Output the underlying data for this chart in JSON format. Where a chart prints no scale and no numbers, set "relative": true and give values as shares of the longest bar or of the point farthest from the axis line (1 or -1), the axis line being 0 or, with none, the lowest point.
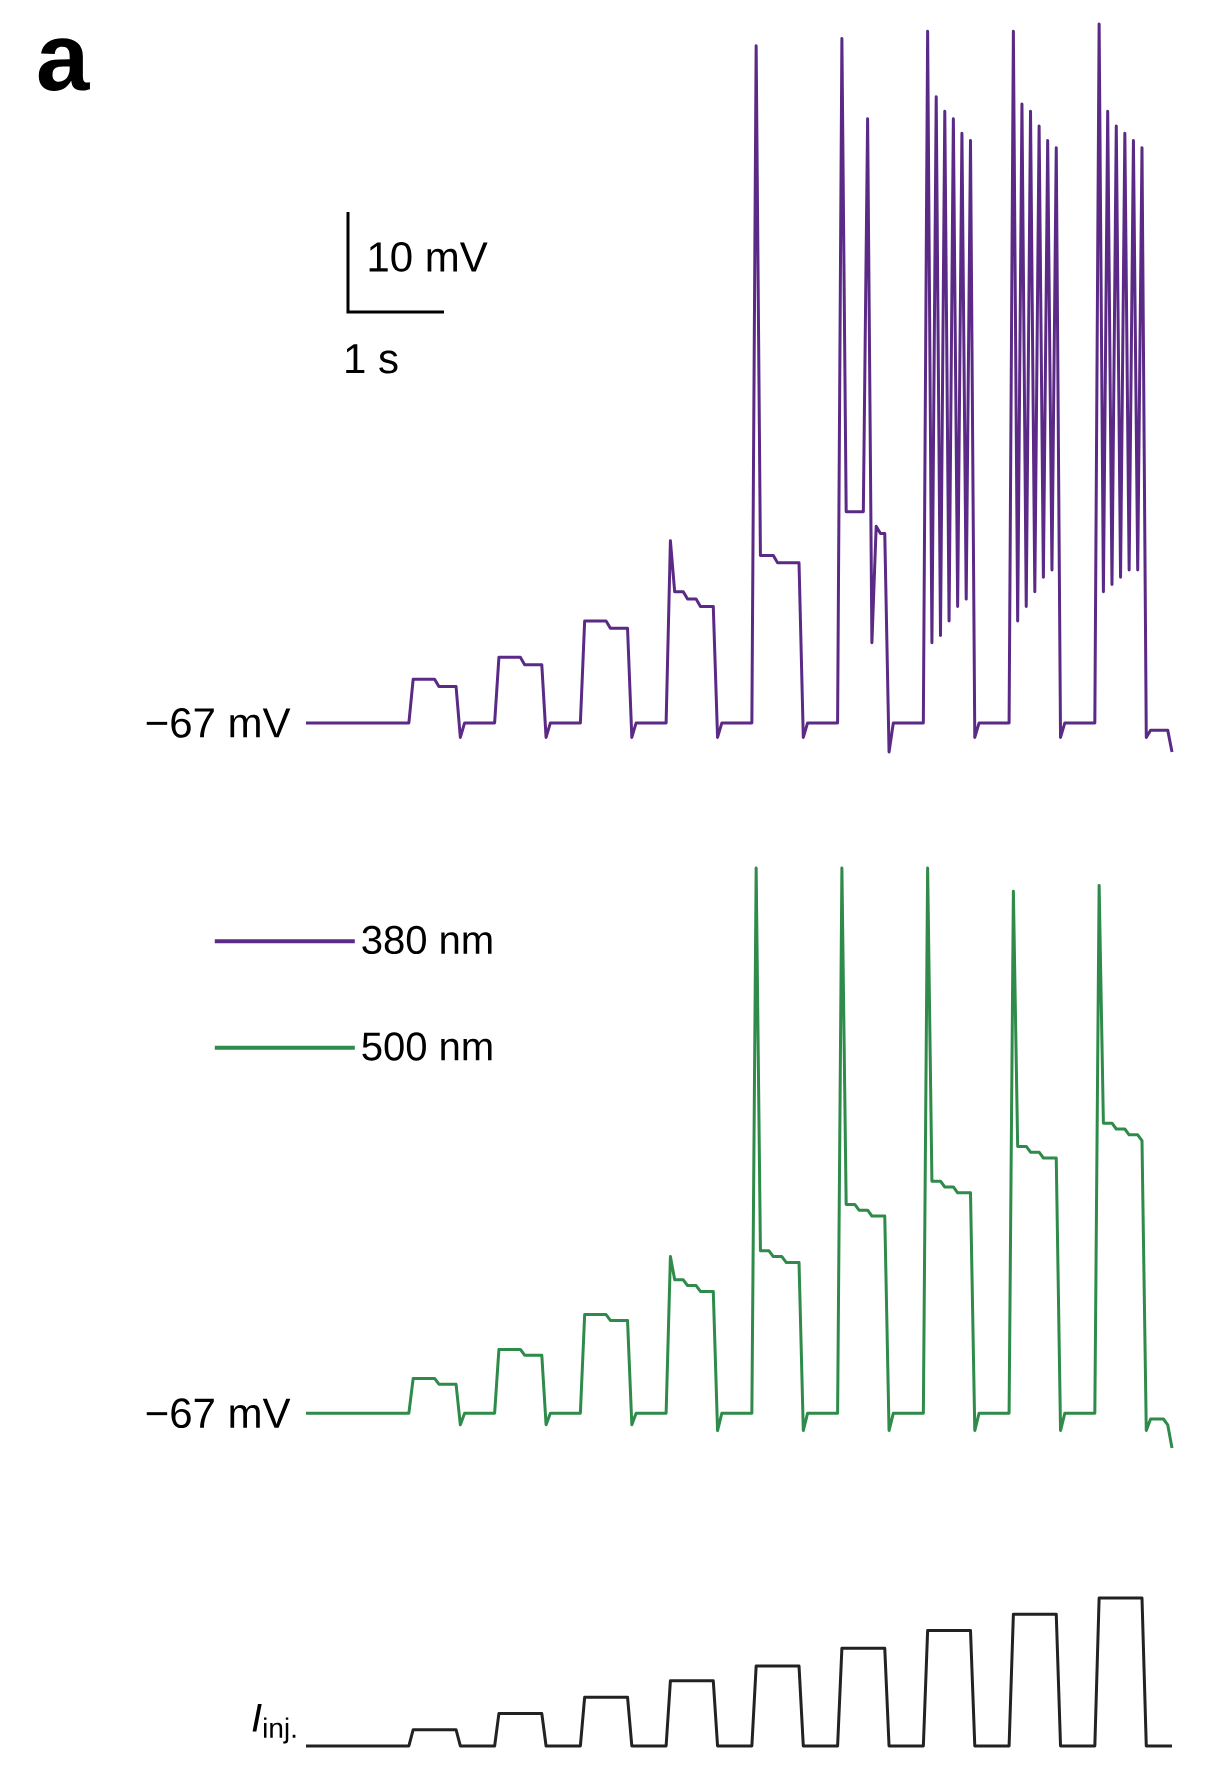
{
  "chart_data": [
    {
      "type": "line",
      "title": "a",
      "relative": true,
      "legend": "bottom left",
      "annotations": [
        "−67 mV",
        "10 mV",
        "1 s"
      ],
      "categories": [
        null,
        null,
        null,
        null,
        null,
        null,
        null,
        null,
        null,
        null,
        null,
        null,
        null,
        null,
        null,
        null,
        null,
        null,
        null,
        null,
        null,
        null,
        null,
        null,
        null,
        null,
        null,
        null,
        null,
        null,
        null,
        null,
        null,
        null,
        null,
        null,
        null,
        null,
        null,
        null,
        null,
        null,
        null,
        null,
        null,
        null,
        null,
        null,
        null,
        null,
        null,
        null,
        null,
        null,
        null,
        null,
        null,
        null,
        null,
        null,
        null,
        null,
        null,
        null,
        null,
        null,
        null,
        null,
        null,
        null,
        null,
        null,
        null,
        null,
        null,
        null,
        null,
        null,
        null,
        null,
        null,
        null,
        null,
        null,
        null,
        null,
        null,
        null,
        null,
        null,
        null,
        null,
        null,
        null,
        null,
        null,
        null,
        null,
        null,
        null,
        null,
        null,
        null,
        null,
        null,
        null,
        null,
        null,
        null,
        null,
        null,
        null,
        null,
        null,
        null,
        null,
        null,
        null,
        null,
        null,
        null,
        null,
        null,
        null,
        null,
        null,
        null,
        null,
        null,
        null,
        null,
        null,
        null,
        null,
        null,
        null,
        null,
        null,
        null,
        null,
        null,
        null,
        null,
        null,
        null,
        null,
        null,
        null,
        null,
        null,
        null,
        null,
        null,
        null,
        null,
        null,
        null,
        null,
        null,
        null,
        null,
        null,
        null,
        null,
        null,
        null,
        null,
        null,
        null,
        null,
        null,
        null,
        null,
        null,
        null,
        null,
        null,
        null,
        null,
        null,
        null,
        null,
        null,
        null,
        null,
        null,
        null,
        null,
        null,
        null,
        null,
        null,
        null,
        null,
        null,
        null,
        null,
        null,
        null,
        null,
        null,
        null,
        null
      ],
      "series": [
        {
          "name": "380 nm",
          "color": "#5b2a86",
          "values": [
            0.04,
            0.04,
            0.04,
            0.04,
            0.04,
            0.04,
            0.04,
            0.04,
            0.04,
            0.04,
            0.04,
            0.04,
            0.04,
            0.04,
            0.04,
            0.04,
            0.04,
            0.04,
            0.04,
            0.04,
            0.04,
            0.04,
            0.04,
            0.04,
            0.04,
            0.1,
            0.1,
            0.1,
            0.1,
            0.1,
            0.1,
            0.09,
            0.09,
            0.09,
            0.09,
            0.09,
            0.02,
            0.04,
            0.04,
            0.04,
            0.04,
            0.04,
            0.04,
            0.04,
            0.04,
            0.13,
            0.13,
            0.13,
            0.13,
            0.13,
            0.13,
            0.12,
            0.12,
            0.12,
            0.12,
            0.12,
            0.02,
            0.04,
            0.04,
            0.04,
            0.04,
            0.04,
            0.04,
            0.04,
            0.04,
            0.18,
            0.18,
            0.18,
            0.18,
            0.18,
            0.18,
            0.17,
            0.17,
            0.17,
            0.17,
            0.17,
            0.02,
            0.04,
            0.04,
            0.04,
            0.04,
            0.04,
            0.04,
            0.04,
            0.04,
            0.29,
            0.22,
            0.22,
            0.22,
            0.21,
            0.21,
            0.21,
            0.2,
            0.2,
            0.2,
            0.2,
            0.02,
            0.04,
            0.04,
            0.04,
            0.04,
            0.04,
            0.04,
            0.04,
            0.04,
            0.97,
            0.27,
            0.27,
            0.27,
            0.27,
            0.26,
            0.26,
            0.26,
            0.26,
            0.26,
            0.26,
            0.02,
            0.04,
            0.04,
            0.04,
            0.04,
            0.04,
            0.04,
            0.04,
            0.04,
            0.98,
            0.33,
            0.33,
            0.33,
            0.33,
            0.33,
            0.87,
            0.15,
            0.31,
            0.3,
            0.3,
            0,
            0.04,
            0.04,
            0.04,
            0.04,
            0.04,
            0.04,
            0.04,
            0.04,
            0.99,
            0.15,
            0.9,
            0.16,
            0.88,
            0.18,
            0.87,
            0.2,
            0.85,
            0.21,
            0.84,
            0.02,
            0.04,
            0.04,
            0.04,
            0.04,
            0.04,
            0.04,
            0.04,
            0.04,
            0.99,
            0.18,
            0.89,
            0.2,
            0.88,
            0.22,
            0.86,
            0.24,
            0.84,
            0.25,
            0.83,
            0.02,
            0.04,
            0.04,
            0.04,
            0.04,
            0.04,
            0.04,
            0.04,
            0.04,
            1,
            0.22,
            0.88,
            0.23,
            0.86,
            0.24,
            0.85,
            0.25,
            0.84,
            0.25,
            0.83,
            0.02,
            0.03,
            0.03,
            0.03,
            0.03,
            0.03,
            0
          ]
        }
      ]
    },
    {
      "type": "line",
      "relative": true,
      "legend": "top left",
      "annotations": [
        "−67 mV"
      ],
      "categories": [
        null,
        null,
        null,
        null,
        null,
        null,
        null,
        null,
        null,
        null,
        null,
        null,
        null,
        null,
        null,
        null,
        null,
        null,
        null,
        null,
        null,
        null,
        null,
        null,
        null,
        null,
        null,
        null,
        null,
        null,
        null,
        null,
        null,
        null,
        null,
        null,
        null,
        null,
        null,
        null,
        null,
        null,
        null,
        null,
        null,
        null,
        null,
        null,
        null,
        null,
        null,
        null,
        null,
        null,
        null,
        null,
        null,
        null,
        null,
        null,
        null,
        null,
        null,
        null,
        null,
        null,
        null,
        null,
        null,
        null,
        null,
        null,
        null,
        null,
        null,
        null,
        null,
        null,
        null,
        null,
        null,
        null,
        null,
        null,
        null,
        null,
        null,
        null,
        null,
        null,
        null,
        null,
        null,
        null,
        null,
        null,
        null,
        null,
        null,
        null,
        null,
        null,
        null,
        null,
        null,
        null,
        null,
        null,
        null,
        null,
        null,
        null,
        null,
        null,
        null,
        null,
        null,
        null,
        null,
        null,
        null,
        null,
        null,
        null,
        null,
        null,
        null,
        null,
        null,
        null,
        null,
        null,
        null,
        null,
        null,
        null,
        null,
        null,
        null,
        null,
        null,
        null,
        null,
        null,
        null,
        null,
        null,
        null,
        null,
        null,
        null,
        null,
        null,
        null,
        null,
        null,
        null,
        null,
        null,
        null,
        null,
        null,
        null,
        null,
        null,
        null,
        null,
        null,
        null,
        null,
        null,
        null,
        null,
        null,
        null,
        null,
        null,
        null,
        null,
        null,
        null,
        null,
        null,
        null,
        null,
        null,
        null,
        null,
        null,
        null,
        null,
        null,
        null,
        null,
        null,
        null,
        null,
        null,
        null,
        null,
        null,
        null,
        null
      ],
      "series": [
        {
          "name": "500 nm",
          "color": "#2e8b4a",
          "values": [
            0.06,
            0.06,
            0.06,
            0.06,
            0.06,
            0.06,
            0.06,
            0.06,
            0.06,
            0.06,
            0.06,
            0.06,
            0.06,
            0.06,
            0.06,
            0.06,
            0.06,
            0.06,
            0.06,
            0.06,
            0.06,
            0.06,
            0.06,
            0.06,
            0.06,
            0.12,
            0.12,
            0.12,
            0.12,
            0.12,
            0.12,
            0.11,
            0.11,
            0.11,
            0.11,
            0.11,
            0.04,
            0.06,
            0.06,
            0.06,
            0.06,
            0.06,
            0.06,
            0.06,
            0.06,
            0.17,
            0.17,
            0.17,
            0.17,
            0.17,
            0.17,
            0.16,
            0.16,
            0.16,
            0.16,
            0.16,
            0.04,
            0.06,
            0.06,
            0.06,
            0.06,
            0.06,
            0.06,
            0.06,
            0.06,
            0.23,
            0.23,
            0.23,
            0.23,
            0.23,
            0.23,
            0.22,
            0.22,
            0.22,
            0.22,
            0.22,
            0.04,
            0.06,
            0.06,
            0.06,
            0.06,
            0.06,
            0.06,
            0.06,
            0.06,
            0.33,
            0.29,
            0.29,
            0.29,
            0.28,
            0.28,
            0.28,
            0.27,
            0.27,
            0.27,
            0.27,
            0.03,
            0.06,
            0.06,
            0.06,
            0.06,
            0.06,
            0.06,
            0.06,
            0.06,
            1,
            0.34,
            0.34,
            0.34,
            0.33,
            0.33,
            0.33,
            0.32,
            0.32,
            0.32,
            0.32,
            0.03,
            0.06,
            0.06,
            0.06,
            0.06,
            0.06,
            0.06,
            0.06,
            0.06,
            1,
            0.42,
            0.42,
            0.42,
            0.41,
            0.41,
            0.41,
            0.4,
            0.4,
            0.4,
            0.4,
            0.03,
            0.06,
            0.06,
            0.06,
            0.06,
            0.06,
            0.06,
            0.06,
            0.06,
            1,
            0.46,
            0.46,
            0.46,
            0.45,
            0.45,
            0.45,
            0.44,
            0.44,
            0.44,
            0.44,
            0.03,
            0.06,
            0.06,
            0.06,
            0.06,
            0.06,
            0.06,
            0.06,
            0.06,
            0.96,
            0.52,
            0.52,
            0.52,
            0.51,
            0.51,
            0.51,
            0.5,
            0.5,
            0.5,
            0.5,
            0.03,
            0.06,
            0.06,
            0.06,
            0.06,
            0.06,
            0.06,
            0.06,
            0.06,
            0.97,
            0.56,
            0.56,
            0.56,
            0.55,
            0.55,
            0.55,
            0.54,
            0.54,
            0.54,
            0.53,
            0.03,
            0.05,
            0.05,
            0.05,
            0.05,
            0.04,
            0
          ]
        }
      ]
    },
    {
      "type": "line",
      "relative": true,
      "categories": [
        null,
        null,
        null,
        null,
        null,
        null,
        null,
        null,
        null,
        null,
        null,
        null,
        null,
        null,
        null,
        null,
        null,
        null,
        null,
        null,
        null,
        null,
        null,
        null,
        null,
        null,
        null,
        null,
        null,
        null,
        null,
        null,
        null,
        null,
        null,
        null,
        null,
        null,
        null,
        null,
        null,
        null,
        null,
        null,
        null,
        null,
        null,
        null,
        null,
        null,
        null,
        null,
        null,
        null,
        null,
        null,
        null,
        null,
        null,
        null,
        null,
        null,
        null,
        null,
        null,
        null,
        null,
        null,
        null,
        null,
        null,
        null,
        null,
        null,
        null,
        null,
        null,
        null,
        null,
        null,
        null,
        null,
        null,
        null,
        null,
        null,
        null,
        null,
        null,
        null,
        null,
        null,
        null,
        null,
        null,
        null,
        null,
        null,
        null,
        null,
        null,
        null,
        null,
        null,
        null,
        null,
        null,
        null,
        null,
        null,
        null,
        null,
        null,
        null,
        null,
        null,
        null,
        null,
        null,
        null,
        null,
        null,
        null,
        null,
        null,
        null,
        null,
        null,
        null,
        null,
        null,
        null,
        null,
        null,
        null,
        null,
        null,
        null,
        null,
        null,
        null,
        null,
        null,
        null,
        null,
        null,
        null,
        null,
        null,
        null,
        null,
        null,
        null,
        null,
        null,
        null,
        null,
        null,
        null,
        null,
        null,
        null,
        null,
        null,
        null,
        null,
        null,
        null,
        null,
        null,
        null,
        null,
        null,
        null,
        null,
        null,
        null,
        null,
        null,
        null,
        null,
        null,
        null,
        null,
        null,
        null,
        null,
        null,
        null,
        null,
        null,
        null,
        null,
        null,
        null,
        null,
        null,
        null,
        null,
        null,
        null,
        null,
        null
      ],
      "series": [
        {
          "name": "*I*$_{inj.}$",
          "color": "#222222",
          "values": [
            0,
            0,
            0,
            0,
            0,
            0,
            0,
            0,
            0,
            0,
            0,
            0,
            0,
            0,
            0,
            0,
            0,
            0,
            0,
            0,
            0,
            0,
            0,
            0,
            0,
            0.11,
            0.11,
            0.11,
            0.11,
            0.11,
            0.11,
            0.11,
            0.11,
            0.11,
            0.11,
            0.11,
            0,
            0,
            0,
            0,
            0,
            0,
            0,
            0,
            0,
            0.22,
            0.22,
            0.22,
            0.22,
            0.22,
            0.22,
            0.22,
            0.22,
            0.22,
            0.22,
            0.22,
            0,
            0,
            0,
            0,
            0,
            0,
            0,
            0,
            0,
            0.33,
            0.33,
            0.33,
            0.33,
            0.33,
            0.33,
            0.33,
            0.33,
            0.33,
            0.33,
            0.33,
            0,
            0,
            0,
            0,
            0,
            0,
            0,
            0,
            0,
            0.44,
            0.44,
            0.44,
            0.44,
            0.44,
            0.44,
            0.44,
            0.44,
            0.44,
            0.44,
            0.44,
            0,
            0,
            0,
            0,
            0,
            0,
            0,
            0,
            0,
            0.54,
            0.54,
            0.54,
            0.54,
            0.54,
            0.54,
            0.54,
            0.54,
            0.54,
            0.54,
            0.54,
            0,
            0,
            0,
            0,
            0,
            0,
            0,
            0,
            0,
            0.66,
            0.66,
            0.66,
            0.66,
            0.66,
            0.66,
            0.66,
            0.66,
            0.66,
            0.66,
            0.66,
            0,
            0,
            0,
            0,
            0,
            0,
            0,
            0,
            0,
            0.78,
            0.78,
            0.78,
            0.78,
            0.78,
            0.78,
            0.78,
            0.78,
            0.78,
            0.78,
            0.78,
            0,
            0,
            0,
            0,
            0,
            0,
            0,
            0,
            0,
            0.89,
            0.89,
            0.89,
            0.89,
            0.89,
            0.89,
            0.89,
            0.89,
            0.89,
            0.89,
            0.89,
            0,
            0,
            0,
            0,
            0,
            0,
            0,
            0,
            0,
            1,
            1,
            1,
            1,
            1,
            1,
            1,
            1,
            1,
            1,
            1,
            0,
            0,
            0,
            0,
            0,
            0,
            0
          ]
        }
      ]
    }
  ]
}
